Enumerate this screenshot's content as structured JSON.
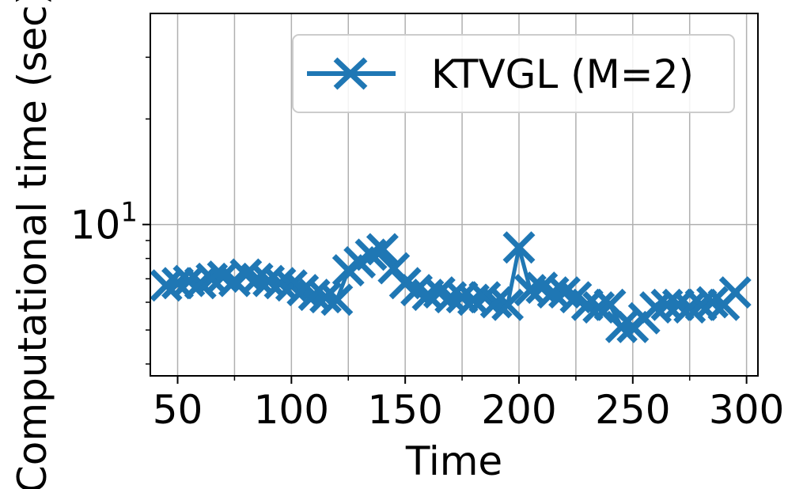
{
  "chart_data": {
    "type": "line",
    "title": "",
    "xlabel": "Time",
    "ylabel": "Computational time (sec)",
    "yscale": "log",
    "grid": true,
    "legend_position": "top-right",
    "color": "#1f77b4",
    "marker": "x",
    "xlim": [
      38,
      305
    ],
    "ylim": [
      3.7,
      40
    ],
    "x_ticks": [
      50,
      100,
      150,
      200,
      250,
      300
    ],
    "y_major_ticks": [
      {
        "value": 10,
        "base": "10",
        "exp": "1"
      }
    ],
    "y_minor_ticks": [
      4,
      5,
      6,
      7,
      8,
      9,
      20,
      30
    ],
    "series": [
      {
        "name": "KTVGL (M=2)",
        "x": [
          45,
          50,
          55,
          60,
          65,
          70,
          75,
          80,
          85,
          90,
          95,
          100,
          105,
          110,
          115,
          120,
          125,
          130,
          135,
          140,
          145,
          150,
          155,
          160,
          165,
          170,
          175,
          180,
          185,
          190,
          195,
          200,
          205,
          210,
          215,
          220,
          225,
          230,
          235,
          240,
          245,
          250,
          255,
          260,
          265,
          270,
          275,
          280,
          285,
          290,
          295
        ],
        "values": [
          6.7,
          6.8,
          6.9,
          6.8,
          7.0,
          7.1,
          6.9,
          7.2,
          7.0,
          6.9,
          6.8,
          6.7,
          6.5,
          6.3,
          6.2,
          6.1,
          7.4,
          7.8,
          8.2,
          8.5,
          7.5,
          6.8,
          6.5,
          6.3,
          6.4,
          6.2,
          6.2,
          6.1,
          6.2,
          6.0,
          5.9,
          8.6,
          6.5,
          6.6,
          6.4,
          6.4,
          6.2,
          5.9,
          5.8,
          5.9,
          5.1,
          5.1,
          5.4,
          5.8,
          5.9,
          5.9,
          5.8,
          5.9,
          6.0,
          5.9,
          6.4
        ]
      }
    ]
  }
}
